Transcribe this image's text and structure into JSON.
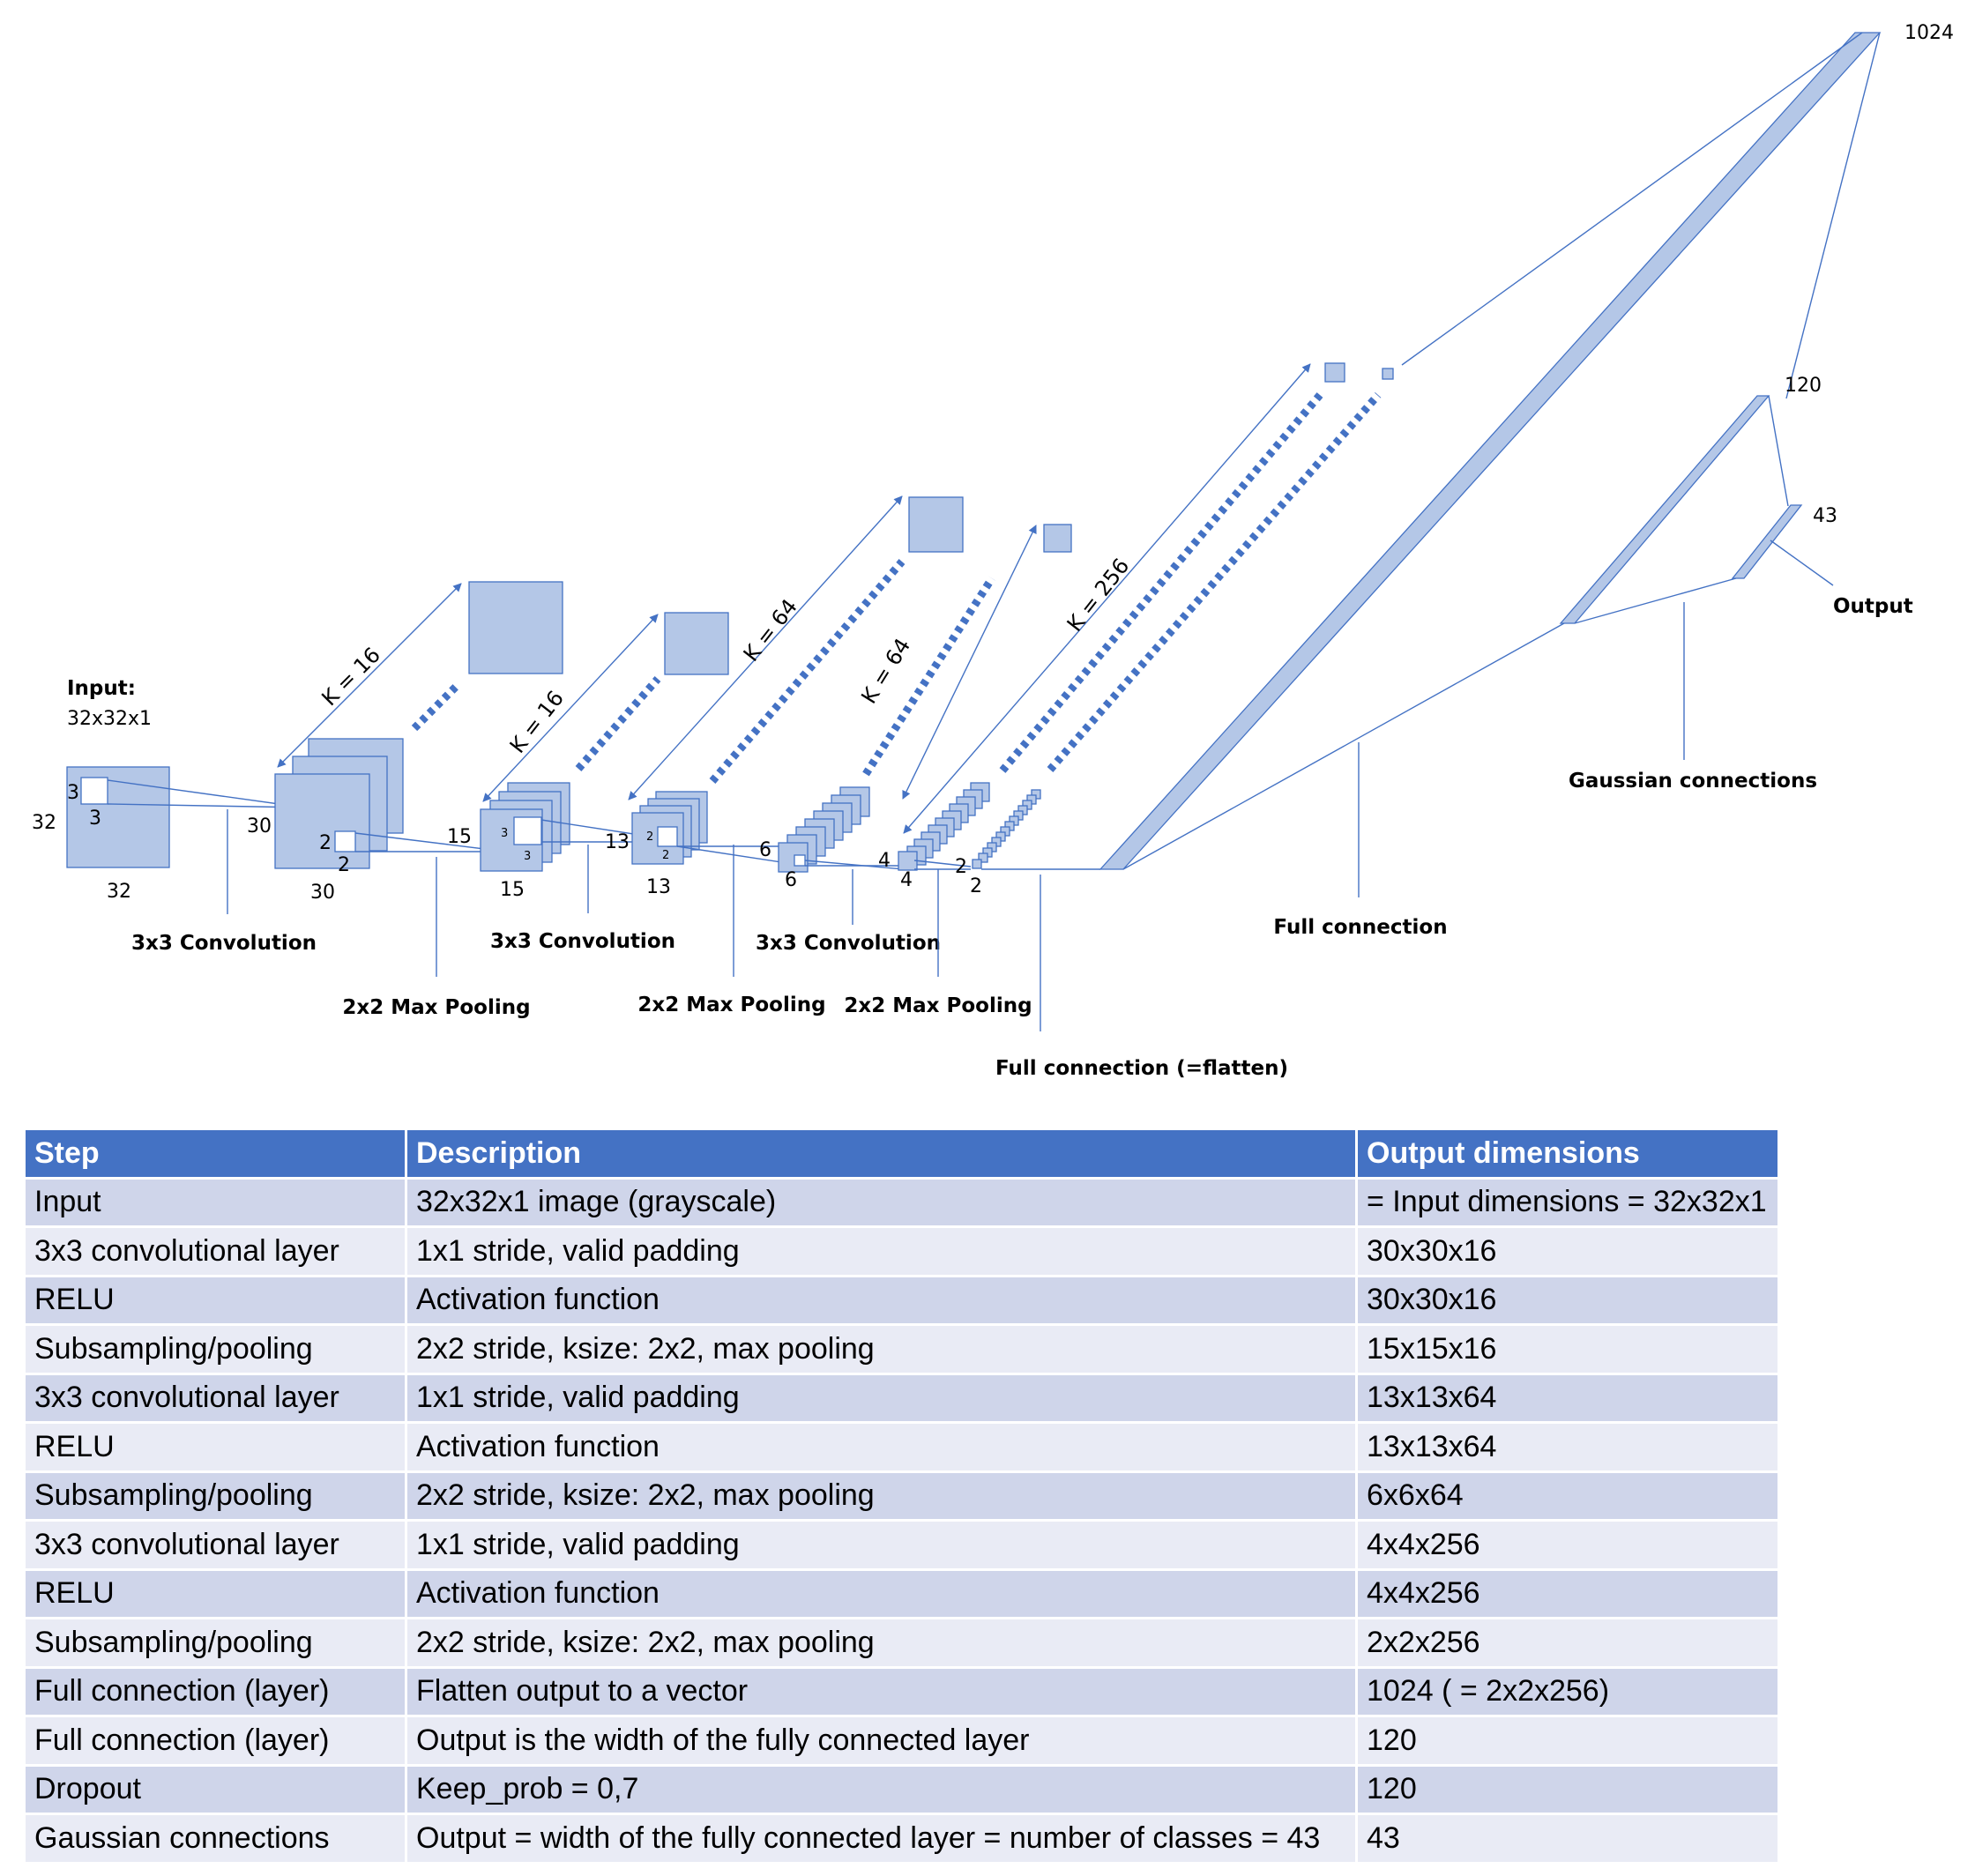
{
  "diagram": {
    "input_title": "Input:",
    "input_size": "32x32x1",
    "stages": [
      {
        "id": "input",
        "dims": [
          "32",
          "32"
        ],
        "kernel": [
          "3",
          "3"
        ]
      },
      {
        "id": "conv1",
        "dims": [
          "30",
          "30"
        ],
        "kernel": [
          "2",
          "2"
        ],
        "k": "K = 16"
      },
      {
        "id": "pool1",
        "dims": [
          "15",
          "15"
        ],
        "kernel": [
          "3",
          "3"
        ],
        "k": "K = 16"
      },
      {
        "id": "conv2",
        "dims": [
          "13",
          "13"
        ],
        "kernel": [
          "2",
          "2"
        ],
        "k": "K = 64"
      },
      {
        "id": "pool2",
        "dims": [
          "6",
          "6"
        ],
        "k": "K = 64"
      },
      {
        "id": "conv3",
        "dims": [
          "4",
          "4"
        ],
        "k": "K = 256"
      },
      {
        "id": "pool3",
        "dims": [
          "2",
          "2"
        ]
      }
    ],
    "operations": {
      "conv1": "3x3 Convolution",
      "pool1": "2x2 Max Pooling",
      "conv2": "3x3 Convolution",
      "pool2": "2x2 Max Pooling",
      "conv3": "3x3 Convolution",
      "pool3": "2x2 Max Pooling",
      "flatten": "Full connection (=flatten)",
      "full": "Full connection",
      "gaussian": "Gaussian connections",
      "output": "Output"
    },
    "fc_sizes": {
      "flatten": "1024",
      "fc1": "120",
      "output": "43"
    }
  },
  "table": {
    "headers": [
      "Step",
      "Description",
      "Output dimensions"
    ],
    "rows": [
      [
        "Input",
        "32x32x1 image (grayscale)",
        "= Input dimensions = 32x32x1"
      ],
      [
        "3x3 convolutional layer",
        "1x1 stride, valid padding",
        "30x30x16"
      ],
      [
        "RELU",
        "Activation function",
        "30x30x16"
      ],
      [
        "Subsampling/pooling",
        "2x2 stride, ksize: 2x2, max pooling",
        "15x15x16"
      ],
      [
        "3x3 convolutional layer",
        "1x1 stride, valid padding",
        "13x13x64"
      ],
      [
        "RELU",
        "Activation function",
        "13x13x64"
      ],
      [
        "Subsampling/pooling",
        "2x2 stride, ksize: 2x2, max pooling",
        "6x6x64"
      ],
      [
        "3x3 convolutional layer",
        "1x1 stride, valid padding",
        "4x4x256"
      ],
      [
        "RELU",
        "Activation function",
        "4x4x256"
      ],
      [
        "Subsampling/pooling",
        "2x2 stride, ksize: 2x2, max pooling",
        "2x2x256"
      ],
      [
        "Full connection (layer)",
        "Flatten output to a vector",
        "1024 ( = 2x2x256)"
      ],
      [
        "Full connection (layer)",
        "Output is the width of the fully connected layer",
        "120"
      ],
      [
        "Dropout",
        "Keep_prob = 0,7",
        "120"
      ],
      [
        "Gaussian connections",
        "Output = width of the fully connected layer = number of classes = 43",
        "43"
      ]
    ]
  },
  "colors": {
    "fill": "#B4C7E7",
    "stroke": "#4472C4",
    "header": "#4472C4",
    "row_odd": "#CFD5EA",
    "row_even": "#E9EBF5"
  }
}
